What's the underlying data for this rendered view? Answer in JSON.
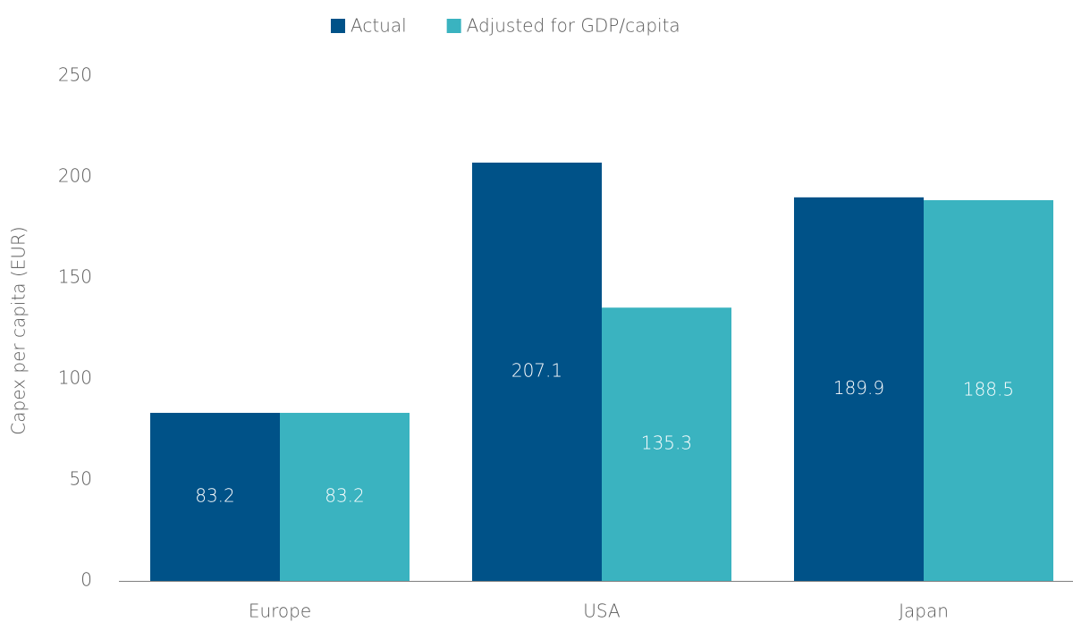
{
  "chart_data": {
    "type": "bar",
    "y_axis_label": "Capex per capita (EUR)",
    "categories": [
      "Europe",
      "USA",
      "Japan"
    ],
    "series": [
      {
        "name": "Actual",
        "color": "#005288",
        "values": [
          83.2,
          207.1,
          189.9
        ]
      },
      {
        "name": "Adjusted for GDP/capita",
        "color": "#3ab3c0",
        "values": [
          83.2,
          135.3,
          188.5
        ]
      }
    ],
    "ylim": [
      0,
      250
    ],
    "yticks": [
      0,
      50,
      100,
      150,
      200,
      250
    ],
    "legend": "top",
    "grid": false
  }
}
